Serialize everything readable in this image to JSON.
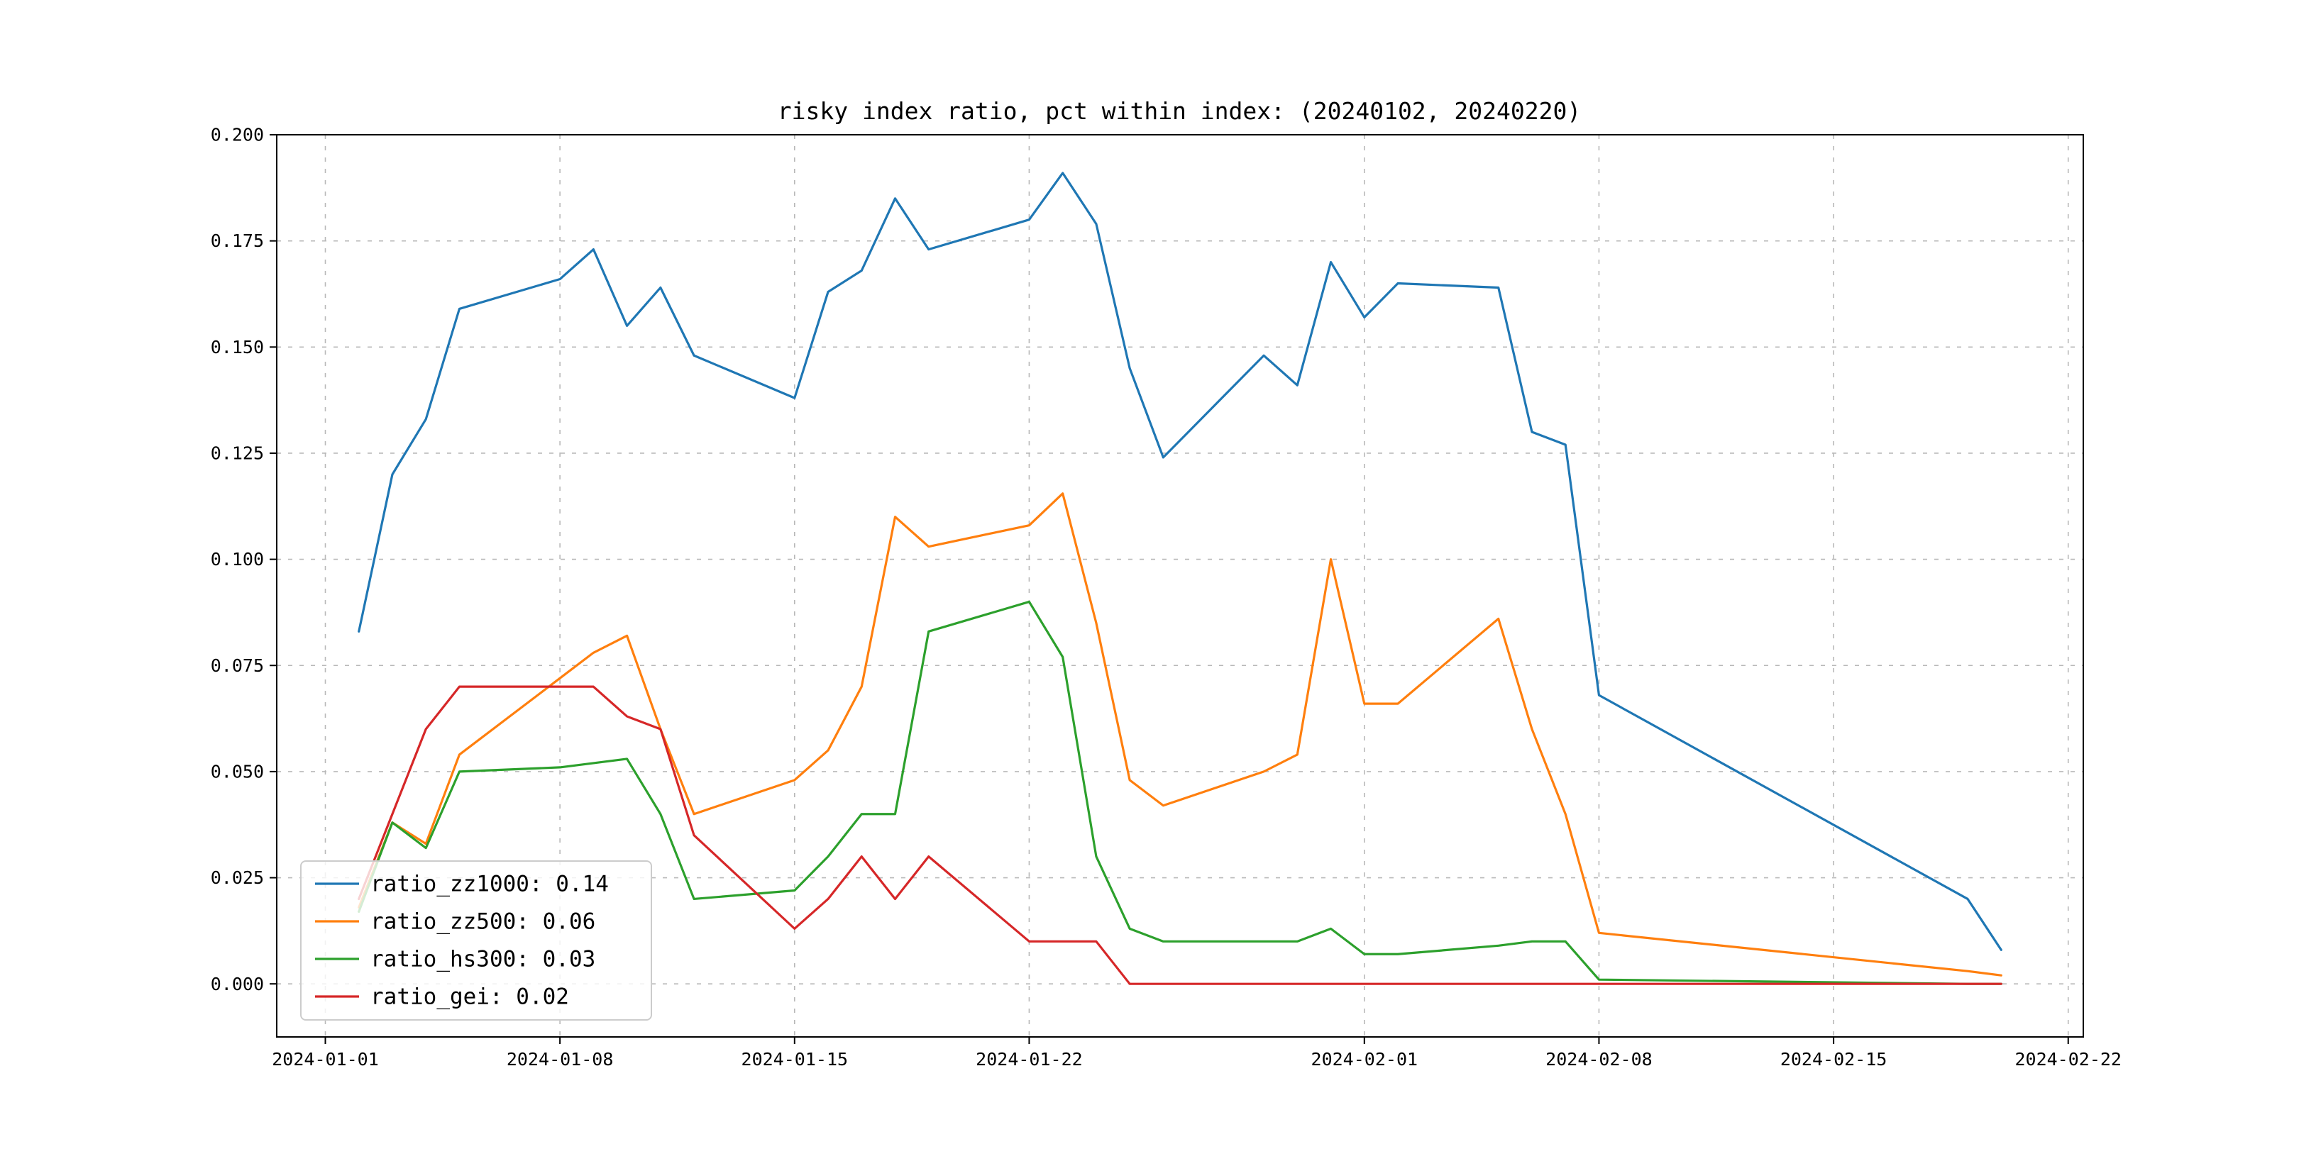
{
  "figure": {
    "background_color": "#ffffff"
  },
  "chart_data": {
    "type": "line",
    "title": "risky index ratio, pct within index: (20240102, 20240220)",
    "grid": true,
    "grid_style": "dashed",
    "legend_position": "lower left",
    "x_origin": "2024-01-01",
    "xlim_days": [
      -1.45,
      52.45
    ],
    "ylim": [
      -0.0125,
      0.2
    ],
    "x_ticks": [
      {
        "label": "2024-01-01",
        "day": 0
      },
      {
        "label": "2024-01-08",
        "day": 7
      },
      {
        "label": "2024-01-15",
        "day": 14
      },
      {
        "label": "2024-01-22",
        "day": 21
      },
      {
        "label": "2024-02-01",
        "day": 31
      },
      {
        "label": "2024-02-08",
        "day": 38
      },
      {
        "label": "2024-02-15",
        "day": 45
      },
      {
        "label": "2024-02-22",
        "day": 52
      }
    ],
    "y_ticks": [
      {
        "label": "0.000",
        "value": 0.0
      },
      {
        "label": "0.025",
        "value": 0.025
      },
      {
        "label": "0.050",
        "value": 0.05
      },
      {
        "label": "0.075",
        "value": 0.075
      },
      {
        "label": "0.100",
        "value": 0.1
      },
      {
        "label": "0.125",
        "value": 0.125
      },
      {
        "label": "0.150",
        "value": 0.15
      },
      {
        "label": "0.175",
        "value": 0.175
      },
      {
        "label": "0.200",
        "value": 0.2
      }
    ],
    "dates": [
      "2024-01-02",
      "2024-01-03",
      "2024-01-04",
      "2024-01-05",
      "2024-01-08",
      "2024-01-09",
      "2024-01-10",
      "2024-01-11",
      "2024-01-12",
      "2024-01-15",
      "2024-01-16",
      "2024-01-17",
      "2024-01-18",
      "2024-01-19",
      "2024-01-22",
      "2024-01-23",
      "2024-01-24",
      "2024-01-25",
      "2024-01-26",
      "2024-01-29",
      "2024-01-30",
      "2024-01-31",
      "2024-02-01",
      "2024-02-02",
      "2024-02-05",
      "2024-02-06",
      "2024-02-07",
      "2024-02-08",
      "2024-02-19",
      "2024-02-20"
    ],
    "series": [
      {
        "name": "ratio_zz1000",
        "legend_label": "ratio_zz1000: 0.14",
        "color": "#1f77b4",
        "values": [
          0.083,
          0.12,
          0.133,
          0.159,
          0.166,
          0.173,
          0.155,
          0.164,
          0.148,
          0.138,
          0.163,
          0.168,
          0.185,
          0.173,
          0.18,
          0.191,
          0.179,
          0.145,
          0.124,
          0.148,
          0.141,
          0.17,
          0.157,
          0.165,
          0.164,
          0.13,
          0.127,
          0.068,
          0.02,
          0.008
        ]
      },
      {
        "name": "ratio_zz500",
        "legend_label": "ratio_zz500: 0.06",
        "color": "#ff7f0e",
        "values": [
          0.018,
          0.038,
          0.033,
          0.054,
          0.072,
          0.078,
          0.082,
          0.06,
          0.04,
          0.048,
          0.055,
          0.07,
          0.11,
          0.103,
          0.108,
          0.1155,
          0.085,
          0.048,
          0.042,
          0.05,
          0.054,
          0.1,
          0.066,
          0.066,
          0.086,
          0.06,
          0.04,
          0.012,
          0.003,
          0.002
        ]
      },
      {
        "name": "ratio_hs300",
        "legend_label": "ratio_hs300: 0.03",
        "color": "#2ca02c",
        "values": [
          0.017,
          0.038,
          0.032,
          0.05,
          0.051,
          0.052,
          0.053,
          0.04,
          0.02,
          0.022,
          0.03,
          0.04,
          0.04,
          0.083,
          0.09,
          0.077,
          0.03,
          0.013,
          0.01,
          0.01,
          0.01,
          0.013,
          0.007,
          0.007,
          0.009,
          0.01,
          0.01,
          0.001,
          0.0,
          0.0
        ]
      },
      {
        "name": "ratio_gei",
        "legend_label": "ratio_gei: 0.02",
        "color": "#d62728",
        "values": [
          0.02,
          0.04,
          0.06,
          0.07,
          0.07,
          0.07,
          0.063,
          0.06,
          0.035,
          0.013,
          0.02,
          0.03,
          0.02,
          0.03,
          0.01,
          0.01,
          0.01,
          0.0,
          0.0,
          0.0,
          0.0,
          0.0,
          0.0,
          0.0,
          0.0,
          0.0,
          0.0,
          0.0,
          0.0,
          0.0
        ]
      }
    ]
  }
}
